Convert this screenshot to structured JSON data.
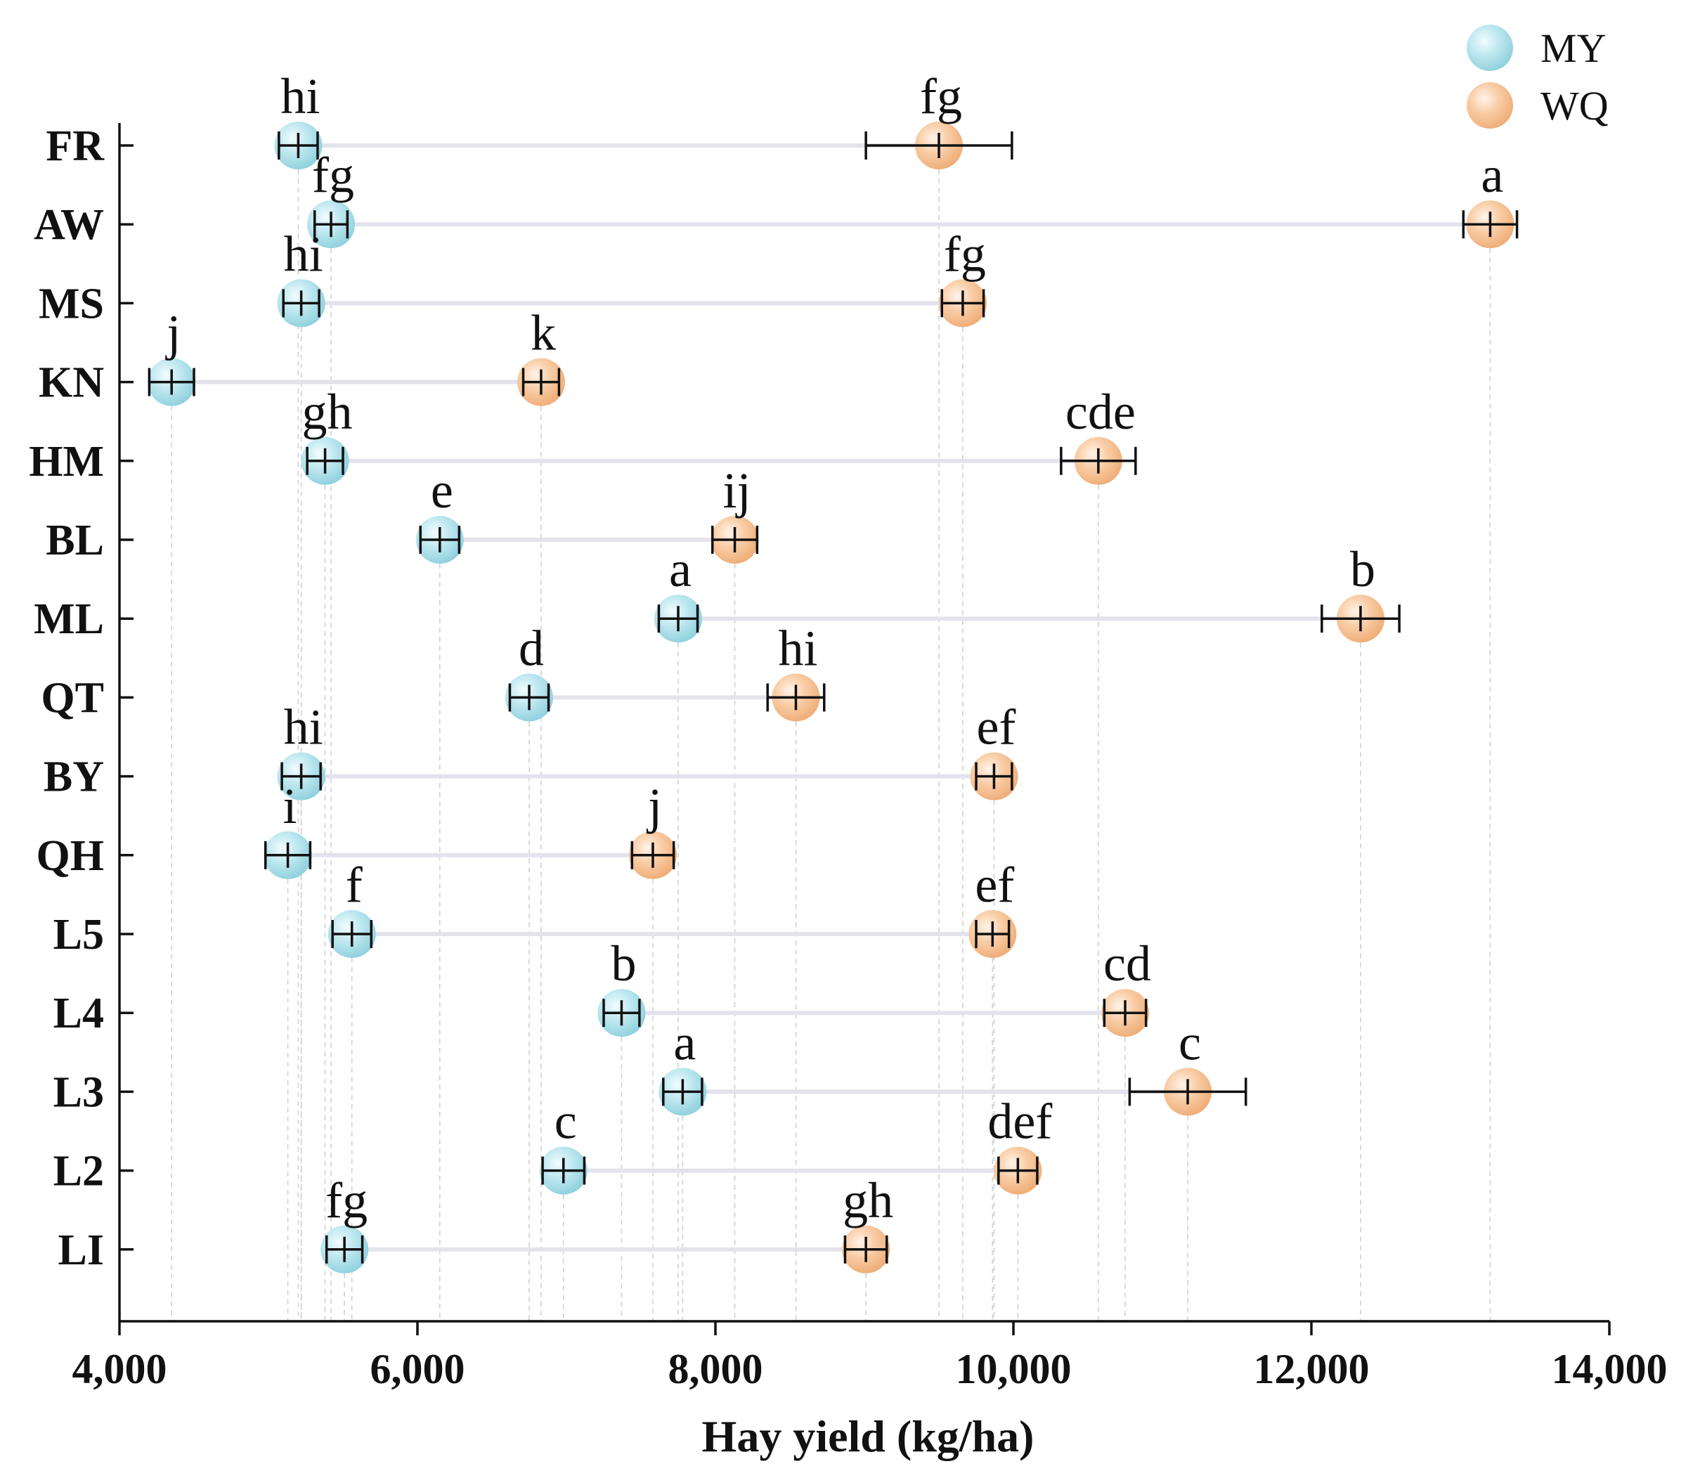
{
  "chart_data": {
    "type": "dumbbell",
    "xlabel": "Hay yield (kg/ha)",
    "xlim": [
      4000,
      14000
    ],
    "xticks": [
      4000,
      6000,
      8000,
      10000,
      12000,
      14000
    ],
    "xtick_labels": [
      "4,000",
      "6,000",
      "8,000",
      "10,000",
      "12,000",
      "14,000"
    ],
    "grid": "vertical dashed guides at each point",
    "legend_position": "top-right",
    "categories": [
      "FR",
      "AW",
      "MS",
      "KN",
      "HM",
      "BL",
      "ML",
      "QT",
      "BY",
      "QH",
      "L5",
      "L4",
      "L3",
      "L2",
      "LI"
    ],
    "series": [
      {
        "name": "MY",
        "color": "#a8dde8",
        "values": [
          5200,
          5420,
          5220,
          4350,
          5380,
          6150,
          7750,
          6750,
          5220,
          5130,
          5560,
          7370,
          7780,
          6980,
          5510
        ],
        "errors": [
          130,
          110,
          120,
          150,
          120,
          130,
          130,
          130,
          130,
          150,
          130,
          120,
          130,
          140,
          120
        ],
        "sig": [
          "hi",
          "fg",
          "hi",
          "j",
          "gh",
          "e",
          "a",
          "d",
          "hi",
          "i",
          "f",
          "b",
          "a",
          "c",
          "fg"
        ]
      },
      {
        "name": "WQ",
        "color": "#f7c49a",
        "values": [
          9500,
          13200,
          9660,
          6830,
          10570,
          8130,
          12330,
          8540,
          9870,
          7580,
          9860,
          10750,
          11170,
          10030,
          9010
        ],
        "errors": [
          490,
          180,
          140,
          120,
          250,
          150,
          260,
          190,
          120,
          140,
          110,
          140,
          390,
          130,
          140
        ],
        "sig": [
          "fg",
          "a",
          "fg",
          "k",
          "cde",
          "ij",
          "b",
          "hi",
          "ef",
          "j",
          "ef",
          "cd",
          "c",
          "def",
          "gh"
        ]
      }
    ]
  },
  "legend": {
    "items": [
      {
        "label": "MY",
        "color": "#a8dde8"
      },
      {
        "label": "WQ",
        "color": "#f7c49a"
      }
    ]
  },
  "colors": {
    "connector": "#e3e3ee",
    "guide": "#d0d0d0",
    "axis": "#111111",
    "error_bar": "#111111"
  }
}
